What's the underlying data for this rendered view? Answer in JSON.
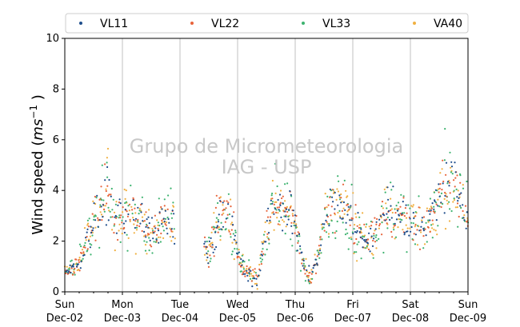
{
  "chart_data": {
    "type": "scatter",
    "ylabel": "Wind speed ($ms^{-1}$ )",
    "ylabel_parts": {
      "pre": "Wind speed (",
      "ital": "ms",
      "sup": "−1",
      "post": " )"
    },
    "ylim": [
      0,
      10
    ],
    "yticks": [
      0,
      2,
      4,
      6,
      8,
      10
    ],
    "xlim": [
      "2018-12-02",
      "2018-12-09"
    ],
    "xticks": [
      {
        "day": "Sun",
        "date": "Dec-02"
      },
      {
        "day": "Mon",
        "date": "Dec-03"
      },
      {
        "day": "Tue",
        "date": "Dec-04"
      },
      {
        "day": "Wed",
        "date": "Dec-05"
      },
      {
        "day": "Thu",
        "date": "Dec-06"
      },
      {
        "day": "Fri",
        "date": "Dec-07"
      },
      {
        "day": "Sat",
        "date": "Dec-08"
      },
      {
        "day": "Sun",
        "date": "Dec-09"
      }
    ],
    "grid": "vertical",
    "legend_placement": "top",
    "series": [
      {
        "name": "VL11",
        "color": "#1f4e8c"
      },
      {
        "name": "VL22",
        "color": "#e8633a"
      },
      {
        "name": "VL33",
        "color": "#3db36f"
      },
      {
        "name": "VA40",
        "color": "#f0b040"
      }
    ],
    "profile_hours_vs_speed": [
      [
        0,
        0.8
      ],
      [
        3,
        0.9
      ],
      [
        6,
        1.2
      ],
      [
        9,
        2.0
      ],
      [
        12,
        2.8
      ],
      [
        15,
        3.3
      ],
      [
        18,
        4.1
      ],
      [
        21,
        3.0
      ],
      [
        24,
        2.8
      ],
      [
        27,
        3.1
      ],
      [
        30,
        2.9
      ],
      [
        33,
        2.6
      ],
      [
        36,
        2.4
      ],
      [
        39,
        2.6
      ],
      [
        42,
        2.9
      ],
      [
        45,
        2.8
      ],
      [
        60,
        1.5
      ],
      [
        63,
        2.6
      ],
      [
        66,
        3.2
      ],
      [
        69,
        2.9
      ],
      [
        72,
        1.5
      ],
      [
        75,
        0.8
      ],
      [
        78,
        0.6
      ],
      [
        81,
        0.6
      ],
      [
        84,
        2.8
      ],
      [
        87,
        3.2
      ],
      [
        90,
        3.4
      ],
      [
        93,
        3.3
      ],
      [
        96,
        2.6
      ],
      [
        99,
        1.2
      ],
      [
        102,
        0.6
      ],
      [
        105,
        1.2
      ],
      [
        108,
        2.5
      ],
      [
        111,
        3.4
      ],
      [
        114,
        3.7
      ],
      [
        117,
        3.2
      ],
      [
        120,
        2.7
      ],
      [
        123,
        2.3
      ],
      [
        126,
        2.0
      ],
      [
        129,
        2.3
      ],
      [
        132,
        2.8
      ],
      [
        135,
        3.4
      ],
      [
        138,
        3.1
      ],
      [
        141,
        2.9
      ],
      [
        144,
        2.8
      ],
      [
        147,
        2.6
      ],
      [
        150,
        2.4
      ],
      [
        153,
        3.0
      ],
      [
        156,
        3.8
      ],
      [
        159,
        4.3
      ],
      [
        162,
        4.3
      ],
      [
        165,
        3.8
      ],
      [
        168,
        3.0
      ]
    ],
    "data_gap_hours": [
      46,
      58
    ],
    "annotations": [
      "Grupo de Micrometeorologia",
      "IAG - USP"
    ]
  }
}
